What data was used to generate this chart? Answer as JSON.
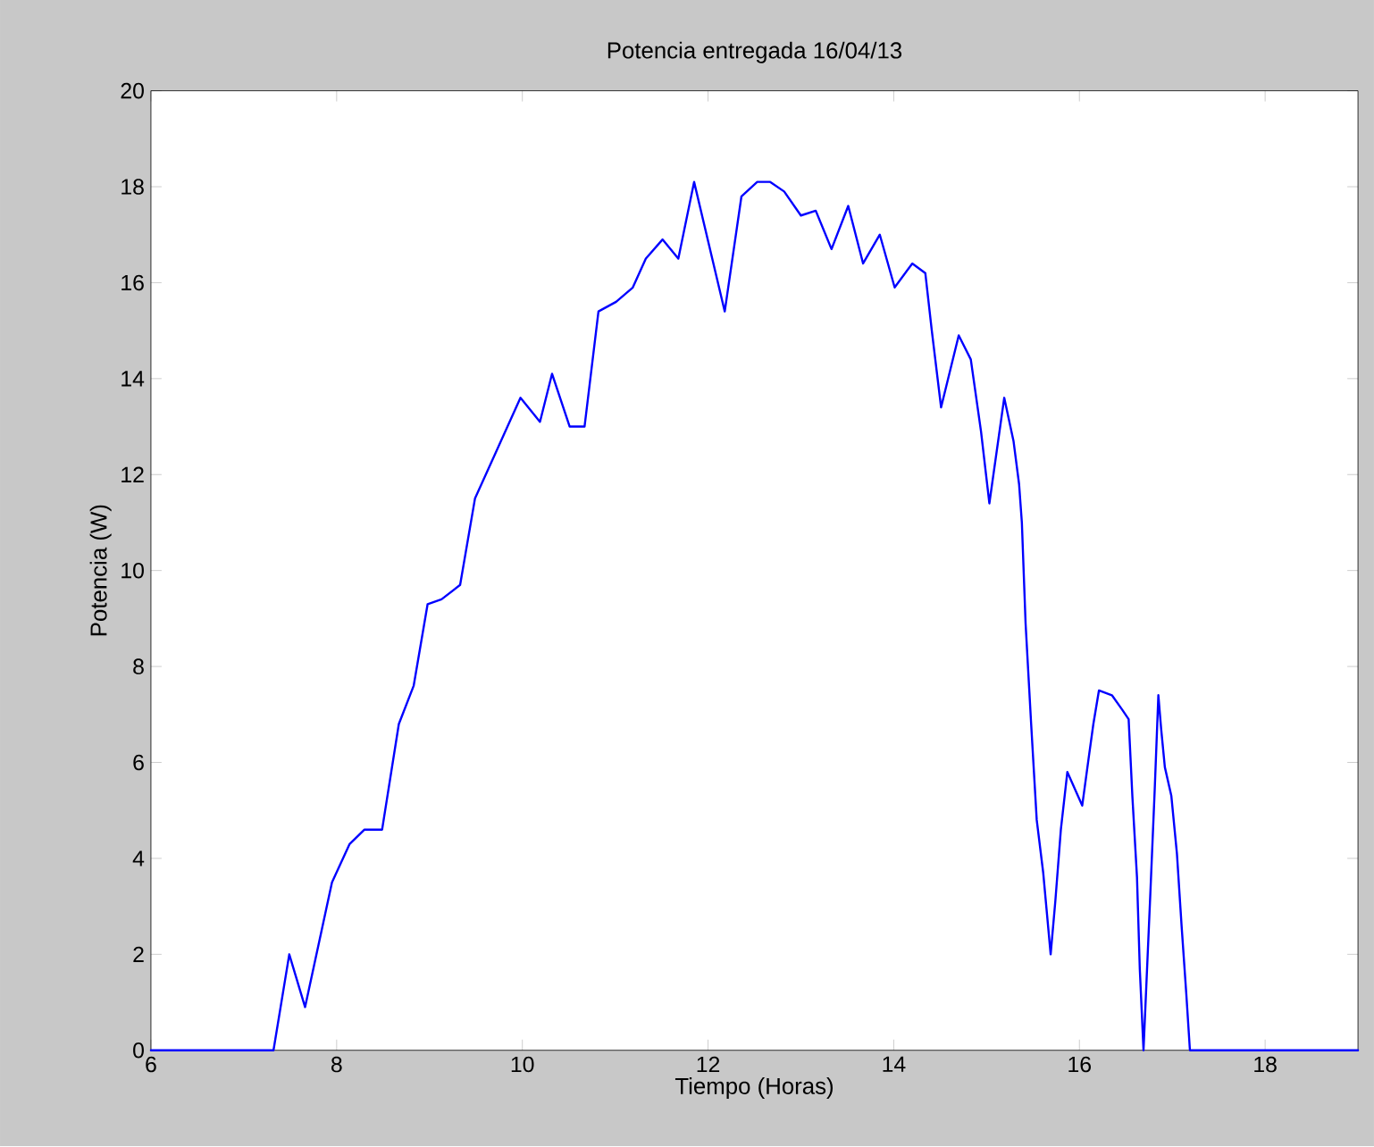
{
  "chart_data": {
    "type": "line",
    "title": "Potencia entregada 16/04/13",
    "xlabel": "Tiempo (Horas)",
    "ylabel": "Potencia (W)",
    "x": [
      6,
      7.32,
      7.49,
      7.66,
      7.95,
      8.14,
      8.3,
      8.49,
      8.67,
      8.83,
      8.98,
      9.13,
      9.33,
      9.49,
      9.98,
      10.19,
      10.32,
      10.51,
      10.67,
      10.82,
      11.01,
      11.19,
      11.33,
      11.51,
      11.68,
      11.85,
      12.18,
      12.36,
      12.53,
      12.67,
      12.82,
      13.0,
      13.16,
      13.33,
      13.51,
      13.67,
      13.85,
      14.01,
      14.2,
      14.34,
      14.41,
      14.51,
      14.7,
      14.83,
      14.94,
      15.03,
      15.19,
      15.29,
      15.35,
      15.38,
      15.42,
      15.48,
      15.54,
      15.61,
      15.69,
      15.74,
      15.8,
      15.87,
      16.03,
      16.1,
      16.15,
      16.21,
      16.35,
      16.46,
      16.53,
      16.57,
      16.62,
      16.65,
      16.69,
      16.76,
      16.81,
      16.85,
      16.88,
      16.92,
      16.99,
      17.05,
      17.1,
      17.15,
      17.19,
      19
    ],
    "series": [
      {
        "color": "#0000ff",
        "values": [
          0,
          0,
          2.0,
          0.9,
          3.5,
          4.3,
          4.6,
          4.6,
          6.8,
          7.6,
          9.3,
          9.4,
          9.7,
          11.5,
          13.6,
          13.1,
          14.1,
          13.0,
          13.0,
          15.4,
          15.6,
          15.9,
          16.5,
          16.9,
          16.5,
          18.1,
          15.4,
          17.8,
          18.1,
          18.1,
          17.9,
          17.4,
          17.5,
          16.7,
          17.6,
          16.4,
          17.0,
          15.9,
          16.4,
          16.2,
          15.0,
          13.4,
          14.9,
          14.4,
          12.9,
          11.4,
          13.6,
          12.7,
          11.8,
          11.0,
          8.9,
          6.8,
          4.8,
          3.7,
          2.0,
          3.1,
          4.6,
          5.8,
          5.1,
          6.1,
          6.8,
          7.5,
          7.4,
          7.1,
          6.9,
          5.3,
          3.6,
          1.7,
          0,
          3.1,
          5.4,
          7.4,
          6.7,
          5.9,
          5.3,
          4.1,
          2.6,
          1.2,
          0,
          0
        ]
      }
    ],
    "xlim": [
      6,
      19
    ],
    "ylim": [
      0,
      20
    ],
    "xticks": [
      6,
      8,
      10,
      12,
      14,
      16,
      18
    ],
    "yticks": [
      0,
      2,
      4,
      6,
      8,
      10,
      12,
      14,
      16,
      18,
      20
    ],
    "line_style": "solid"
  }
}
